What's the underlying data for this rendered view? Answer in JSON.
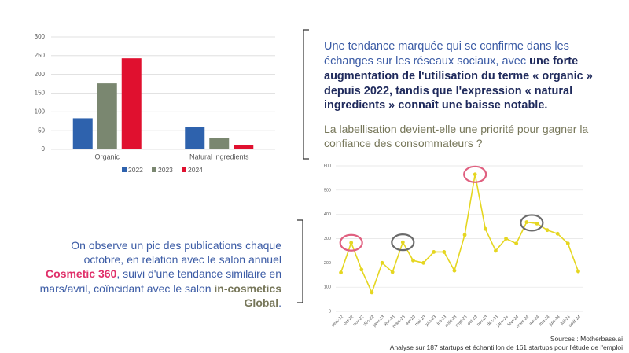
{
  "chart_data": [
    {
      "type": "bar",
      "categories": [
        "Organic",
        "Natural ingredients"
      ],
      "series": [
        {
          "name": "2022",
          "color": "#2e62ad",
          "values": [
            83,
            60
          ]
        },
        {
          "name": "2023",
          "color": "#7a8770",
          "values": [
            176,
            30
          ]
        },
        {
          "name": "2024",
          "color": "#e0102f",
          "values": [
            243,
            11
          ]
        }
      ],
      "ylim": [
        0,
        300
      ],
      "yticks": [
        0,
        50,
        100,
        150,
        200,
        250,
        300
      ],
      "grid": true,
      "legend": "bottom"
    },
    {
      "type": "line",
      "categories": [
        "sept-22",
        "oct-22",
        "nov-22",
        "déc-22",
        "janv-23",
        "févr-23",
        "mars-23",
        "avr-23",
        "mai-23",
        "juin-23",
        "juil-23",
        "août-23",
        "sept-23",
        "oct-23",
        "nov-23",
        "déc-23",
        "janv-24",
        "févr-24",
        "mars-24",
        "avr-24",
        "mai-24",
        "juin-24",
        "juil-24",
        "août-24"
      ],
      "values": [
        160,
        283,
        172,
        78,
        200,
        162,
        285,
        210,
        200,
        245,
        245,
        168,
        315,
        565,
        340,
        250,
        300,
        280,
        368,
        362,
        335,
        320,
        280,
        165
      ],
      "color": "#e5d620",
      "ylim": [
        0,
        600
      ],
      "yticks": [
        0,
        100,
        200,
        300,
        400,
        500,
        600
      ],
      "grid": true
    }
  ],
  "texts": {
    "p1_start": "Une tendance marquée qui se confirme dans les échanges sur les réseaux sociaux, avec ",
    "p1_bold": "une forte augmentation de l'utilisation du terme « organic » depuis 2022, tandis que l'expression « natural ingredients » connaît une baisse notable.",
    "p2": "La labellisation devient-elle une priorité pour gagner la confiance des consommateurs ?",
    "p3_start": "On observe un pic des publications chaque octobre, en relation avec le salon annuel ",
    "p3_red": "Cosmetic 360",
    "p3_mid": ", suivi d'une tendance similaire en mars/avril, coïncidant avec le salon ",
    "p3_green": "in-cosmetics Global",
    "p3_end": ".",
    "source1": "Sources : Motherbase.ai",
    "source2": "Analyse sur 187 startups et échantillon de 161 startups pour l'étude de l'emploi"
  }
}
